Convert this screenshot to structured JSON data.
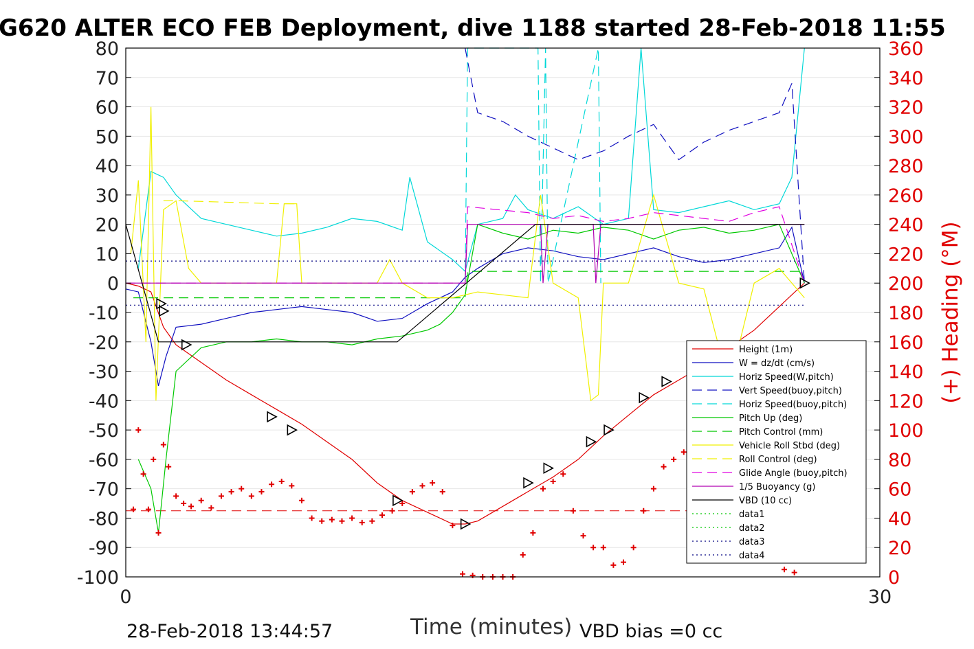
{
  "chart_data": {
    "type": "line",
    "title": "G620 ALTER ECO FEB Deployment, dive 1188 started 28-Feb-2018 11:55",
    "xlabel": "Time (minutes)",
    "ylabel_right": "(+) Heading (°M)",
    "xlim": [
      0,
      30
    ],
    "ylim": [
      -100,
      80
    ],
    "ylim_right": [
      0,
      360
    ],
    "x_ticks": [
      "0",
      "30"
    ],
    "y_ticks": [
      "80",
      "70",
      "60",
      "50",
      "40",
      "30",
      "20",
      "10",
      "0",
      "-10",
      "-20",
      "-30",
      "-40",
      "-50",
      "-60",
      "-70",
      "-80",
      "-90",
      "-100"
    ],
    "y2_ticks": [
      "360",
      "340",
      "320",
      "300",
      "280",
      "260",
      "240",
      "220",
      "200",
      "180",
      "160",
      "140",
      "120",
      "100",
      "80",
      "60",
      "40",
      "20",
      "0"
    ],
    "footer_left": "28-Feb-2018 13:44:57",
    "footer_right": "VBD bias =0 cc",
    "grid": "horizontal",
    "legend_position": "lower-right",
    "series": [
      {
        "name": "Height (1m)",
        "color": "#e00000",
        "style": "solid",
        "x": [
          0,
          0.5,
          1.0,
          1.5,
          2.0,
          3.0,
          4.0,
          5.0,
          6.0,
          7.0,
          8.0,
          9.0,
          10.0,
          11.0,
          12.0,
          13.0,
          13.5,
          14.0,
          15.0,
          16.0,
          17.0,
          18.0,
          19.0,
          20.0,
          21.0,
          22.0,
          23.0,
          24.0,
          25.0,
          26.0,
          27.0
        ],
        "y": [
          0,
          -1,
          -3,
          -15,
          -21,
          -27,
          -33,
          -38,
          -43,
          -48,
          -54,
          -60,
          -68,
          -74,
          -78,
          -82,
          -82,
          -81,
          -76,
          -71,
          -66,
          -60,
          -52,
          -45,
          -38,
          -33,
          -28,
          -22,
          -16,
          -8,
          0
        ]
      },
      {
        "name": "W = dz/dt (cm/s)",
        "color": "#1010c0",
        "style": "solid",
        "x": [
          0,
          0.5,
          1.0,
          1.3,
          1.6,
          2.0,
          3.0,
          4.0,
          5.0,
          6.0,
          7.0,
          8.0,
          9.0,
          10.0,
          11.0,
          12.0,
          13.0,
          13.5,
          14.0,
          15.0,
          16.0,
          17.0,
          18.0,
          19.0,
          20.0,
          21.0,
          22.0,
          23.0,
          24.0,
          25.0,
          26.0,
          26.5,
          27.0
        ],
        "y": [
          -2,
          -3,
          -20,
          -35,
          -25,
          -15,
          -14,
          -12,
          -10,
          -9,
          -8,
          -9,
          -10,
          -13,
          -12,
          -7,
          -3,
          2,
          5,
          10,
          12,
          11,
          9,
          8,
          10,
          12,
          9,
          7,
          8,
          10,
          12,
          19,
          0
        ]
      },
      {
        "name": "Horiz Speed(W,pitch)",
        "color": "#00d8d8",
        "style": "solid",
        "x": [
          0.5,
          1.0,
          1.5,
          2.0,
          3.0,
          4.0,
          5.0,
          6.0,
          7.0,
          8.0,
          9.0,
          10.0,
          11.0,
          11.3,
          12.0,
          13.0,
          13.5,
          14.0,
          15.0,
          15.5,
          16.0,
          17.0,
          18.0,
          19.0,
          20.0,
          20.5,
          21.0,
          22.0,
          23.0,
          24.0,
          25.0,
          26.0,
          26.5,
          27.0
        ],
        "y": [
          5,
          38,
          36,
          30,
          22,
          20,
          18,
          16,
          17,
          19,
          22,
          21,
          18,
          36,
          14,
          8,
          4,
          20,
          22,
          30,
          25,
          22,
          26,
          20,
          22,
          80,
          25,
          24,
          26,
          28,
          25,
          27,
          36,
          80
        ]
      },
      {
        "name": "Vert Speed(buoy,pitch)",
        "color": "#1010c0",
        "style": "dashed",
        "x": [
          13.5,
          14.0,
          15.0,
          16.0,
          17.0,
          18.0,
          19.0,
          20.0,
          21.0,
          22.0,
          23.0,
          24.0,
          25.0,
          26.0,
          26.5,
          27.0
        ],
        "y": [
          80,
          58,
          55,
          50,
          46,
          42,
          45,
          50,
          54,
          42,
          48,
          52,
          55,
          58,
          68,
          0
        ]
      },
      {
        "name": "Horiz Speed(buoy,pitch)",
        "color": "#00d8d8",
        "style": "dashed",
        "x": [
          13.5,
          13.6,
          16.4,
          16.5,
          16.7,
          16.8,
          18.8,
          18.9
        ],
        "y": [
          0,
          80,
          80,
          0,
          80,
          0,
          80,
          0
        ]
      },
      {
        "name": "Pitch Up (deg)",
        "color": "#00c800",
        "style": "solid",
        "x": [
          0.5,
          1.0,
          1.3,
          1.6,
          2.0,
          3.0,
          4.0,
          5.0,
          6.0,
          7.0,
          8.0,
          9.0,
          10.0,
          11.0,
          12.0,
          12.5,
          13.0,
          13.5,
          14.0,
          15.0,
          16.0,
          17.0,
          18.0,
          19.0,
          20.0,
          21.0,
          22.0,
          23.0,
          24.0,
          25.0,
          26.0,
          27.0
        ],
        "y": [
          -60,
          -70,
          -85,
          -60,
          -30,
          -22,
          -20,
          -20,
          -19,
          -20,
          -20,
          -21,
          -19,
          -18,
          -16,
          -14,
          -10,
          -4,
          20,
          17,
          15,
          18,
          17,
          19,
          18,
          15,
          18,
          19,
          17,
          18,
          20,
          0
        ]
      },
      {
        "name": "Pitch Control (mm)",
        "color": "#00c800",
        "style": "dashed",
        "x": [
          0.3,
          13.5,
          13.6,
          27.0
        ],
        "y": [
          -5,
          -5,
          4,
          4
        ]
      },
      {
        "name": "Vehicle Roll Stbd (deg)",
        "color": "#f0f000",
        "style": "solid",
        "x": [
          0.2,
          0.5,
          0.8,
          1.0,
          1.2,
          1.5,
          2.0,
          2.5,
          3.0,
          4.0,
          5.0,
          6.0,
          6.3,
          6.8,
          7.0,
          8.0,
          9.0,
          10.0,
          10.5,
          11.0,
          12.0,
          13.0,
          14.0,
          15.0,
          16.0,
          16.5,
          17.0,
          18.0,
          18.5,
          18.8,
          19.0,
          20.0,
          21.0,
          22.0,
          23.0,
          24.0,
          25.0,
          26.0,
          27.0
        ],
        "y": [
          10,
          35,
          -20,
          60,
          -40,
          25,
          28,
          5,
          0,
          0,
          0,
          0,
          27,
          27,
          0,
          0,
          0,
          0,
          8,
          0,
          -5,
          -5,
          -3,
          -4,
          -5,
          30,
          0,
          -5,
          -40,
          -38,
          0,
          0,
          30,
          0,
          -2,
          -35,
          0,
          5,
          -5
        ]
      },
      {
        "name": "Roll Control (deg)",
        "color": "#f0f000",
        "style": "dashed",
        "x": [
          1.5,
          2.2,
          6.0,
          6.7
        ],
        "y": [
          28,
          28,
          27,
          27
        ]
      },
      {
        "name": "Glide Angle (buoy,pitch)",
        "color": "#e000e0",
        "style": "dashed",
        "x": [
          0,
          13.5,
          13.6,
          16.0,
          17.0,
          18.0,
          19.0,
          20.0,
          21.0,
          22.0,
          23.0,
          24.0,
          25.0,
          26.0,
          27.0
        ],
        "y": [
          0,
          0,
          26,
          24,
          22,
          23,
          21,
          22,
          24,
          23,
          22,
          21,
          24,
          26,
          0
        ]
      },
      {
        "name": "1/5 Buoyancy (g)",
        "color": "#b000b0",
        "style": "solid",
        "x": [
          0,
          13.5,
          13.6,
          16.5,
          16.6,
          16.8,
          18.6,
          18.7,
          18.9,
          27.0
        ],
        "y": [
          0,
          0,
          20,
          20,
          0,
          20,
          20,
          0,
          20,
          20
        ]
      },
      {
        "name": "VBD (10 cc)",
        "color": "#000000",
        "style": "solid",
        "x": [
          0,
          1.3,
          10.8,
          16.3,
          27.0
        ],
        "y": [
          20,
          -20,
          -20,
          20,
          20
        ]
      },
      {
        "name": "data1",
        "color": "#00c800",
        "style": "dotted",
        "x": [],
        "y": []
      },
      {
        "name": "data2",
        "color": "#00c800",
        "style": "dotted",
        "x": [],
        "y": []
      },
      {
        "name": "data3",
        "color": "#000080",
        "style": "dotted",
        "x": [
          0,
          27
        ],
        "y": [
          7.5,
          7.5
        ]
      },
      {
        "name": "data4",
        "color": "#000080",
        "style": "dotted",
        "x": [
          0,
          27
        ],
        "y": [
          -7.5,
          -7.5
        ]
      }
    ],
    "heading_series": {
      "marker": "plus",
      "color": "#e00000",
      "x": [
        0.3,
        0.5,
        0.7,
        0.9,
        1.1,
        1.3,
        1.5,
        1.7,
        2.0,
        2.3,
        2.6,
        3.0,
        3.4,
        3.8,
        4.2,
        4.6,
        5.0,
        5.4,
        5.8,
        6.2,
        6.6,
        7.0,
        7.4,
        7.8,
        8.2,
        8.6,
        9.0,
        9.4,
        9.8,
        10.2,
        10.6,
        11.0,
        11.4,
        11.8,
        12.2,
        12.6,
        13.0,
        13.4,
        13.8,
        14.2,
        14.6,
        15.0,
        15.4,
        15.8,
        16.2,
        16.6,
        17.0,
        17.4,
        17.8,
        18.2,
        18.6,
        19.0,
        19.4,
        19.8,
        20.2,
        20.6,
        21.0,
        21.4,
        21.8,
        22.2,
        22.6,
        23.0,
        23.4,
        23.8,
        24.2,
        24.6,
        25.0,
        25.4,
        25.8,
        26.2,
        26.6
      ],
      "y": [
        46,
        100,
        70,
        46,
        80,
        30,
        90,
        75,
        55,
        50,
        48,
        52,
        47,
        55,
        58,
        60,
        55,
        58,
        63,
        65,
        62,
        52,
        40,
        38,
        39,
        38,
        40,
        37,
        38,
        42,
        45,
        50,
        58,
        62,
        64,
        58,
        35,
        2,
        1,
        0,
        0,
        0,
        0,
        15,
        30,
        60,
        65,
        70,
        45,
        28,
        20,
        20,
        8,
        10,
        20,
        45,
        60,
        75,
        80,
        85,
        95,
        105,
        110,
        115,
        120,
        90,
        70,
        110,
        120,
        5,
        3
      ]
    },
    "heading_mean": 45,
    "triangles": {
      "x": [
        1.4,
        1.5,
        2.4,
        5.8,
        6.6,
        10.8,
        13.5,
        16.0,
        16.8,
        18.5,
        19.2,
        20.6,
        21.5,
        27.0
      ],
      "y": [
        -7,
        -9.5,
        -21,
        -45.5,
        -50,
        -74,
        -82,
        -68,
        -63,
        -54,
        -50,
        -39,
        -33.5,
        0
      ]
    }
  }
}
